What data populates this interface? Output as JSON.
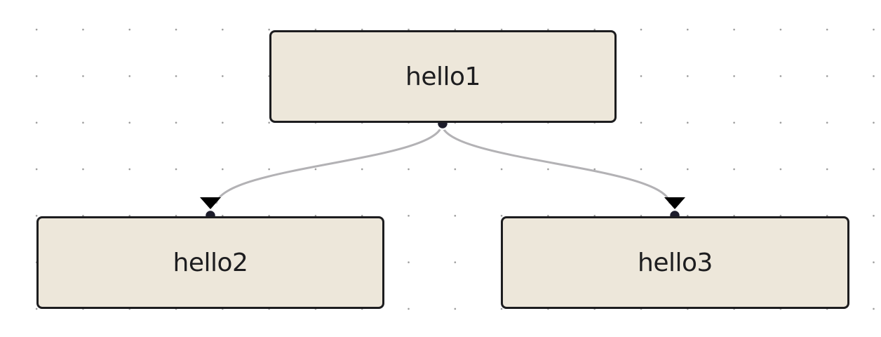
{
  "diagram": {
    "nodes": [
      {
        "id": "hello1",
        "label": "hello1"
      },
      {
        "id": "hello2",
        "label": "hello2"
      },
      {
        "id": "hello3",
        "label": "hello3"
      }
    ],
    "edges": [
      {
        "from": "hello1",
        "to": "hello2"
      },
      {
        "from": "hello1",
        "to": "hello3"
      }
    ],
    "colors": {
      "node_fill": "#ede7da",
      "node_border": "#1d1d1f",
      "edge": "#b3b2b5",
      "handle": "#1d1d2b",
      "grid_dot": "#9a9a9a"
    }
  }
}
